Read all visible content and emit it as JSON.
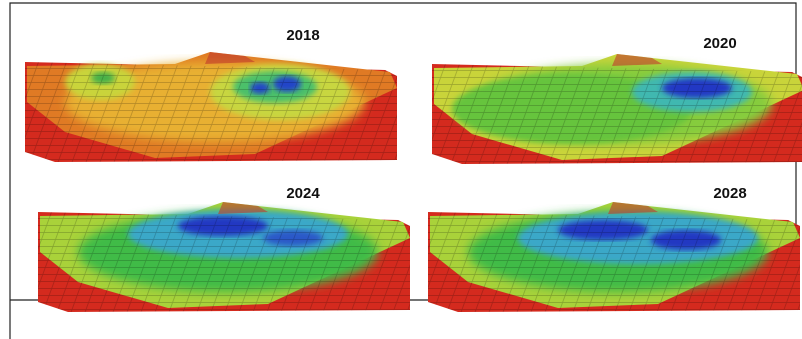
{
  "panels": [
    {
      "label": "2018"
    },
    {
      "label": "2020"
    },
    {
      "label": "2024"
    },
    {
      "label": "2028"
    }
  ]
}
